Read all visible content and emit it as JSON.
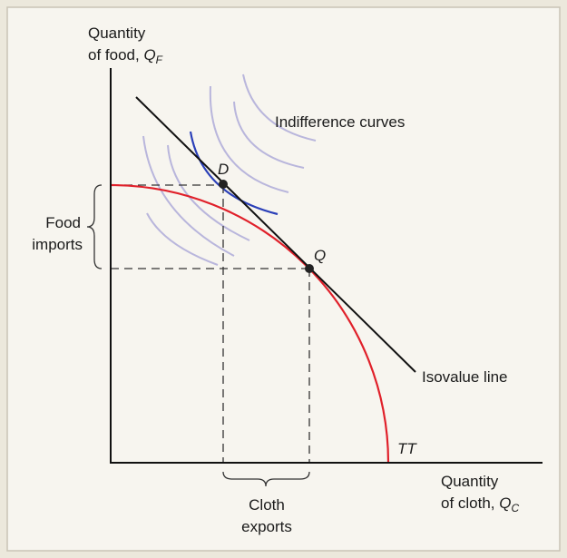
{
  "y_axis_label": {
    "line1": "Quantity",
    "line2": "of food, ",
    "symbol": "Q",
    "subscript": "F"
  },
  "x_axis_label": {
    "line1": "Quantity",
    "line2": "of cloth, ",
    "symbol": "Q",
    "subscript": "C"
  },
  "curve_labels": {
    "indifference": "Indifference curves",
    "isovalue": "Isovalue line",
    "production": "TT"
  },
  "points": {
    "consumption": "D",
    "production": "Q"
  },
  "braces": {
    "food_imports": [
      "Food",
      "imports"
    ],
    "cloth_exports": [
      "Cloth",
      "exports"
    ]
  }
}
